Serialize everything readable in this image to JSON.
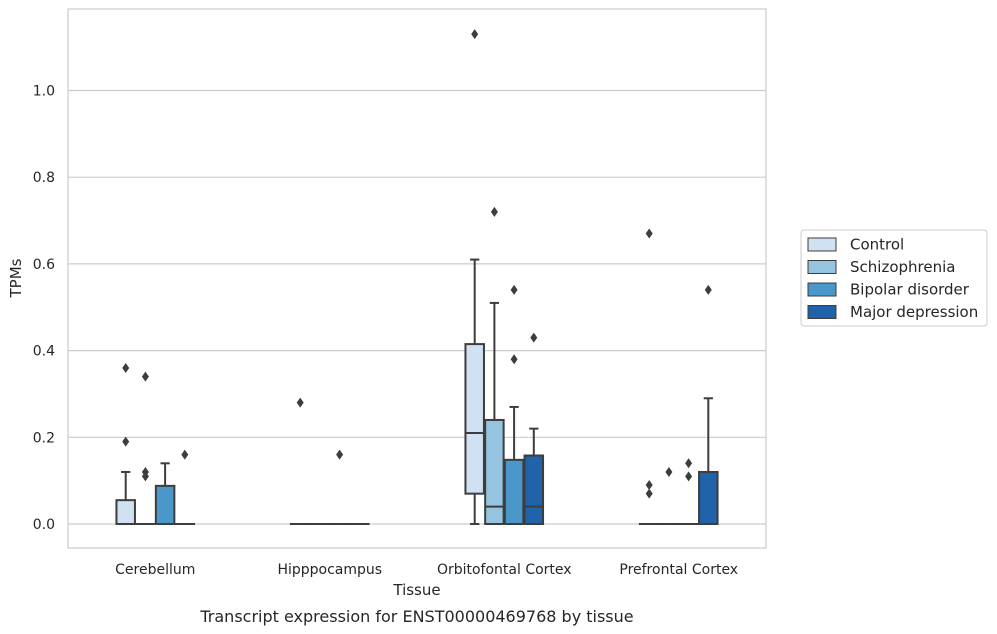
{
  "chart_data": {
    "type": "box",
    "xlabel": "Tissue",
    "ylabel": "TPMs",
    "caption": "Transcript expression for ENST00000469768 by tissue",
    "ylim": [
      -0.055,
      1.185
    ],
    "y_ticks": [
      "0.0",
      "0.2",
      "0.4",
      "0.6",
      "0.8",
      "1.0"
    ],
    "y_tick_values": [
      0.0,
      0.2,
      0.4,
      0.6,
      0.8,
      1.0
    ],
    "grid": "horizontal",
    "legend_placement": "right",
    "categories": [
      "Cerebellum",
      "Hipppocampus",
      "Orbitofontal Cortex",
      "Prefrontal Cortex"
    ],
    "series": [
      {
        "name": "Control",
        "color": "#d0e1f2",
        "boxes": [
          {
            "whisker_low": 0.0,
            "q1": 0.0,
            "median": 0.0,
            "q3": 0.055,
            "whisker_high": 0.12,
            "outliers": [
              0.19,
              0.36
            ]
          },
          {
            "whisker_low": 0.0,
            "q1": 0.0,
            "median": 0.0,
            "q3": 0.0,
            "whisker_high": 0.0,
            "outliers": [
              0.28
            ]
          },
          {
            "whisker_low": 0.0,
            "q1": 0.07,
            "median": 0.21,
            "q3": 0.415,
            "whisker_high": 0.61,
            "outliers": [
              1.13
            ]
          },
          {
            "whisker_low": 0.0,
            "q1": 0.0,
            "median": 0.0,
            "q3": 0.0,
            "whisker_high": 0.0,
            "outliers": [
              0.07,
              0.09,
              0.67
            ]
          }
        ]
      },
      {
        "name": "Schizophrenia",
        "color": "#94c4df",
        "boxes": [
          {
            "whisker_low": 0.0,
            "q1": 0.0,
            "median": 0.0,
            "q3": 0.0,
            "whisker_high": 0.0,
            "outliers": [
              0.11,
              0.12,
              0.34
            ]
          },
          {
            "whisker_low": 0.0,
            "q1": 0.0,
            "median": 0.0,
            "q3": 0.0,
            "whisker_high": 0.0,
            "outliers": []
          },
          {
            "whisker_low": 0.0,
            "q1": 0.0,
            "median": 0.04,
            "q3": 0.24,
            "whisker_high": 0.51,
            "outliers": [
              0.72
            ]
          },
          {
            "whisker_low": 0.0,
            "q1": 0.0,
            "median": 0.0,
            "q3": 0.0,
            "whisker_high": 0.0,
            "outliers": [
              0.12
            ]
          }
        ]
      },
      {
        "name": "Bipolar disorder",
        "color": "#4a98c9",
        "boxes": [
          {
            "whisker_low": 0.0,
            "q1": 0.0,
            "median": 0.0,
            "q3": 0.088,
            "whisker_high": 0.14,
            "outliers": []
          },
          {
            "whisker_low": 0.0,
            "q1": 0.0,
            "median": 0.0,
            "q3": 0.0,
            "whisker_high": 0.0,
            "outliers": [
              0.16
            ]
          },
          {
            "whisker_low": 0.0,
            "q1": 0.0,
            "median": 0.0,
            "q3": 0.148,
            "whisker_high": 0.27,
            "outliers": [
              0.38,
              0.54
            ]
          },
          {
            "whisker_low": 0.0,
            "q1": 0.0,
            "median": 0.0,
            "q3": 0.0,
            "whisker_high": 0.0,
            "outliers": [
              0.11,
              0.14
            ]
          }
        ]
      },
      {
        "name": "Major depression",
        "color": "#2163aa",
        "boxes": [
          {
            "whisker_low": 0.0,
            "q1": 0.0,
            "median": 0.0,
            "q3": 0.0,
            "whisker_high": 0.0,
            "outliers": [
              0.16
            ]
          },
          {
            "whisker_low": 0.0,
            "q1": 0.0,
            "median": 0.0,
            "q3": 0.0,
            "whisker_high": 0.0,
            "outliers": []
          },
          {
            "whisker_low": 0.0,
            "q1": 0.0,
            "median": 0.04,
            "q3": 0.158,
            "whisker_high": 0.22,
            "outliers": [
              0.43
            ]
          },
          {
            "whisker_low": 0.0,
            "q1": 0.0,
            "median": 0.0,
            "q3": 0.12,
            "whisker_high": 0.29,
            "outliers": [
              0.54
            ]
          }
        ]
      }
    ]
  }
}
